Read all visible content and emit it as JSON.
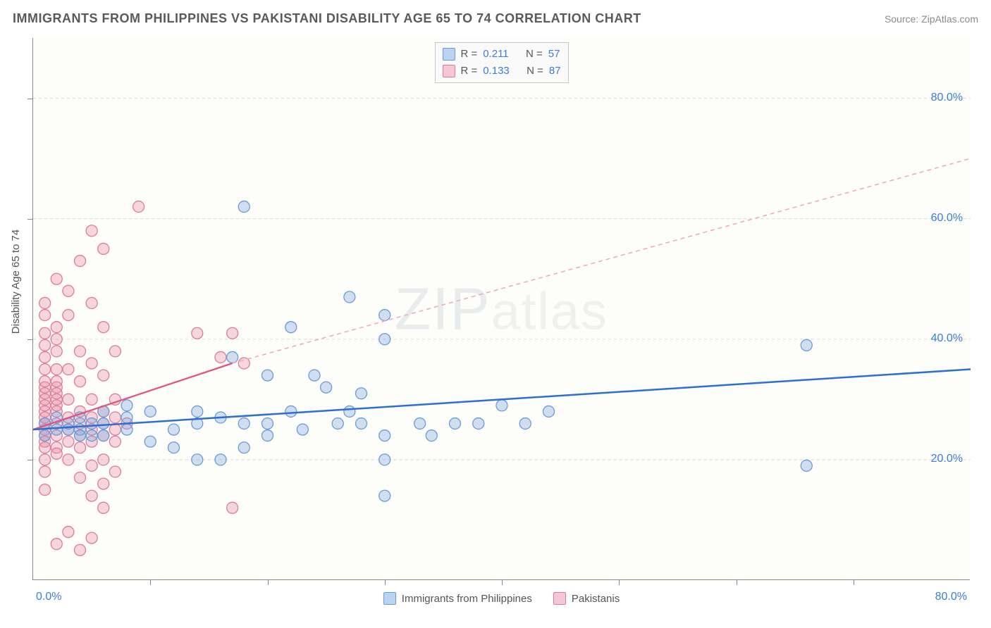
{
  "title": "IMMIGRANTS FROM PHILIPPINES VS PAKISTANI DISABILITY AGE 65 TO 74 CORRELATION CHART",
  "source": "Source: ZipAtlas.com",
  "watermark_zip": "ZIP",
  "watermark_atlas": "atlas",
  "ylabel": "Disability Age 65 to 74",
  "chart": {
    "type": "scatter",
    "background_color": "#fdfdfa",
    "xlim": [
      0,
      80
    ],
    "ylim": [
      0,
      90
    ],
    "x_axis_label_min": "0.0%",
    "x_axis_label_max": "80.0%",
    "y_axis_label_min": "0.0%",
    "y_ticks": [
      20,
      40,
      60,
      80
    ],
    "y_tick_labels": [
      "20.0%",
      "40.0%",
      "60.0%",
      "80.0%"
    ],
    "x_minor_ticks": [
      10,
      20,
      30,
      40,
      50,
      60,
      70
    ],
    "grid_color": "#d8d8d8",
    "marker_radius": 8,
    "marker_stroke_width": 1.3,
    "series": [
      {
        "name": "Immigrants from Philippines",
        "color_fill": "rgba(120,165,224,0.35)",
        "color_stroke": "#6b9bd6",
        "swatch_fill": "#bcd3ef",
        "swatch_border": "#6b9bd6",
        "r_value": "0.211",
        "n_value": "57",
        "trend": {
          "x1": 0,
          "y1": 25,
          "x2": 80,
          "y2": 35,
          "color": "#2f6fd0",
          "width": 2.5,
          "dash": ""
        },
        "points": [
          [
            18,
            62
          ],
          [
            27,
            47
          ],
          [
            30,
            44
          ],
          [
            30,
            40
          ],
          [
            22,
            42
          ],
          [
            17,
            37
          ],
          [
            20,
            34
          ],
          [
            24,
            34
          ],
          [
            25,
            32
          ],
          [
            28,
            31
          ],
          [
            27,
            28
          ],
          [
            26,
            26
          ],
          [
            28,
            26
          ],
          [
            30,
            24
          ],
          [
            30,
            20
          ],
          [
            33,
            26
          ],
          [
            34,
            24
          ],
          [
            36,
            26
          ],
          [
            38,
            26
          ],
          [
            40,
            29
          ],
          [
            42,
            26
          ],
          [
            44,
            28
          ],
          [
            30,
            14
          ],
          [
            8,
            25
          ],
          [
            10,
            28
          ],
          [
            12,
            25
          ],
          [
            14,
            26
          ],
          [
            14,
            28
          ],
          [
            16,
            27
          ],
          [
            18,
            26
          ],
          [
            20,
            26
          ],
          [
            22,
            28
          ],
          [
            23,
            25
          ],
          [
            10,
            23
          ],
          [
            12,
            22
          ],
          [
            14,
            20
          ],
          [
            16,
            20
          ],
          [
            18,
            22
          ],
          [
            20,
            24
          ],
          [
            6,
            26
          ],
          [
            6,
            24
          ],
          [
            4,
            25
          ],
          [
            4,
            27
          ],
          [
            6,
            28
          ],
          [
            8,
            29
          ],
          [
            8,
            27
          ],
          [
            5,
            24
          ],
          [
            3,
            26
          ],
          [
            66,
            39
          ],
          [
            66,
            19
          ],
          [
            2,
            25
          ],
          [
            1,
            26
          ],
          [
            1,
            24
          ],
          [
            2,
            27
          ],
          [
            4,
            24
          ],
          [
            3,
            25
          ],
          [
            5,
            26
          ]
        ]
      },
      {
        "name": "Pakistanis",
        "color_fill": "rgba(232,140,165,0.35)",
        "color_stroke": "#de7b99",
        "swatch_fill": "#f3c7d4",
        "swatch_border": "#de7b99",
        "r_value": "0.133",
        "n_value": "87",
        "trend": {
          "x1": 0,
          "y1": 25,
          "x2": 17,
          "y2": 36,
          "color": "#e2557e",
          "width": 2.3,
          "dash": ""
        },
        "trend_ext": {
          "x1": 17,
          "y1": 36,
          "x2": 80,
          "y2": 70,
          "color": "#eea8bb",
          "width": 1.5,
          "dash": "6,5"
        },
        "points": [
          [
            9,
            62
          ],
          [
            5,
            58
          ],
          [
            6,
            55
          ],
          [
            4,
            53
          ],
          [
            2,
            50
          ],
          [
            3,
            48
          ],
          [
            5,
            46
          ],
          [
            3,
            44
          ],
          [
            6,
            42
          ],
          [
            2,
            40
          ],
          [
            4,
            38
          ],
          [
            7,
            38
          ],
          [
            5,
            36
          ],
          [
            3,
            35
          ],
          [
            6,
            34
          ],
          [
            4,
            33
          ],
          [
            2,
            32
          ],
          [
            3,
            30
          ],
          [
            5,
            30
          ],
          [
            7,
            30
          ],
          [
            14,
            41
          ],
          [
            17,
            41
          ],
          [
            16,
            37
          ],
          [
            18,
            36
          ],
          [
            4,
            28
          ],
          [
            6,
            28
          ],
          [
            2,
            28
          ],
          [
            3,
            27
          ],
          [
            5,
            27
          ],
          [
            7,
            27
          ],
          [
            1,
            26
          ],
          [
            2,
            26
          ],
          [
            4,
            26
          ],
          [
            6,
            26
          ],
          [
            8,
            26
          ],
          [
            1,
            25
          ],
          [
            3,
            25
          ],
          [
            5,
            25
          ],
          [
            7,
            25
          ],
          [
            2,
            24
          ],
          [
            4,
            24
          ],
          [
            6,
            24
          ],
          [
            1,
            24
          ],
          [
            3,
            23
          ],
          [
            5,
            23
          ],
          [
            7,
            23
          ],
          [
            2,
            22
          ],
          [
            4,
            22
          ],
          [
            6,
            20
          ],
          [
            3,
            20
          ],
          [
            5,
            19
          ],
          [
            7,
            18
          ],
          [
            4,
            17
          ],
          [
            6,
            16
          ],
          [
            5,
            14
          ],
          [
            6,
            12
          ],
          [
            17,
            12
          ],
          [
            3,
            8
          ],
          [
            5,
            7
          ],
          [
            2,
            6
          ],
          [
            4,
            5
          ],
          [
            1,
            30
          ],
          [
            1,
            28
          ],
          [
            1,
            29
          ],
          [
            2,
            29
          ],
          [
            1,
            27
          ],
          [
            2,
            30
          ],
          [
            1,
            31
          ],
          [
            2,
            31
          ],
          [
            1,
            32
          ],
          [
            1,
            33
          ],
          [
            2,
            33
          ],
          [
            1,
            35
          ],
          [
            2,
            35
          ],
          [
            1,
            37
          ],
          [
            2,
            38
          ],
          [
            1,
            39
          ],
          [
            1,
            41
          ],
          [
            2,
            42
          ],
          [
            1,
            44
          ],
          [
            1,
            46
          ],
          [
            1,
            20
          ],
          [
            1,
            23
          ],
          [
            1,
            22
          ],
          [
            2,
            21
          ],
          [
            1,
            18
          ],
          [
            1,
            15
          ]
        ]
      }
    ]
  },
  "legend_top": {
    "r_label": "R =",
    "n_label": "N ="
  },
  "legend_bottom": {
    "series1": "Immigrants from Philippines",
    "series2": "Pakistanis"
  }
}
